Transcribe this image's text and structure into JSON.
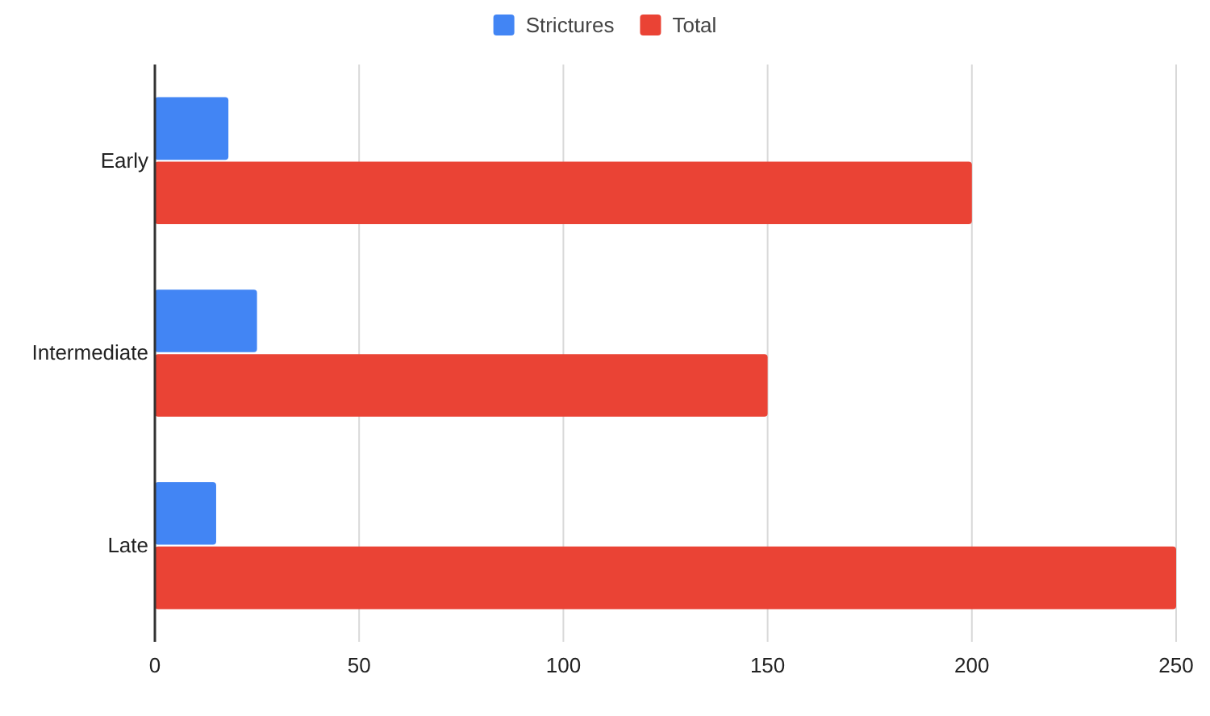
{
  "chart_data": {
    "type": "bar",
    "orientation": "horizontal",
    "categories": [
      "Early",
      "Intermediate",
      "Late"
    ],
    "series": [
      {
        "name": "Strictures",
        "color": "#4285f4",
        "values": [
          18,
          25,
          15
        ]
      },
      {
        "name": "Total",
        "color": "#ea4335",
        "values": [
          200,
          150,
          250
        ]
      }
    ],
    "xlim": [
      0,
      250
    ],
    "xticks": [
      0,
      50,
      100,
      150,
      200,
      250
    ],
    "grid": "x",
    "legend": "top"
  }
}
